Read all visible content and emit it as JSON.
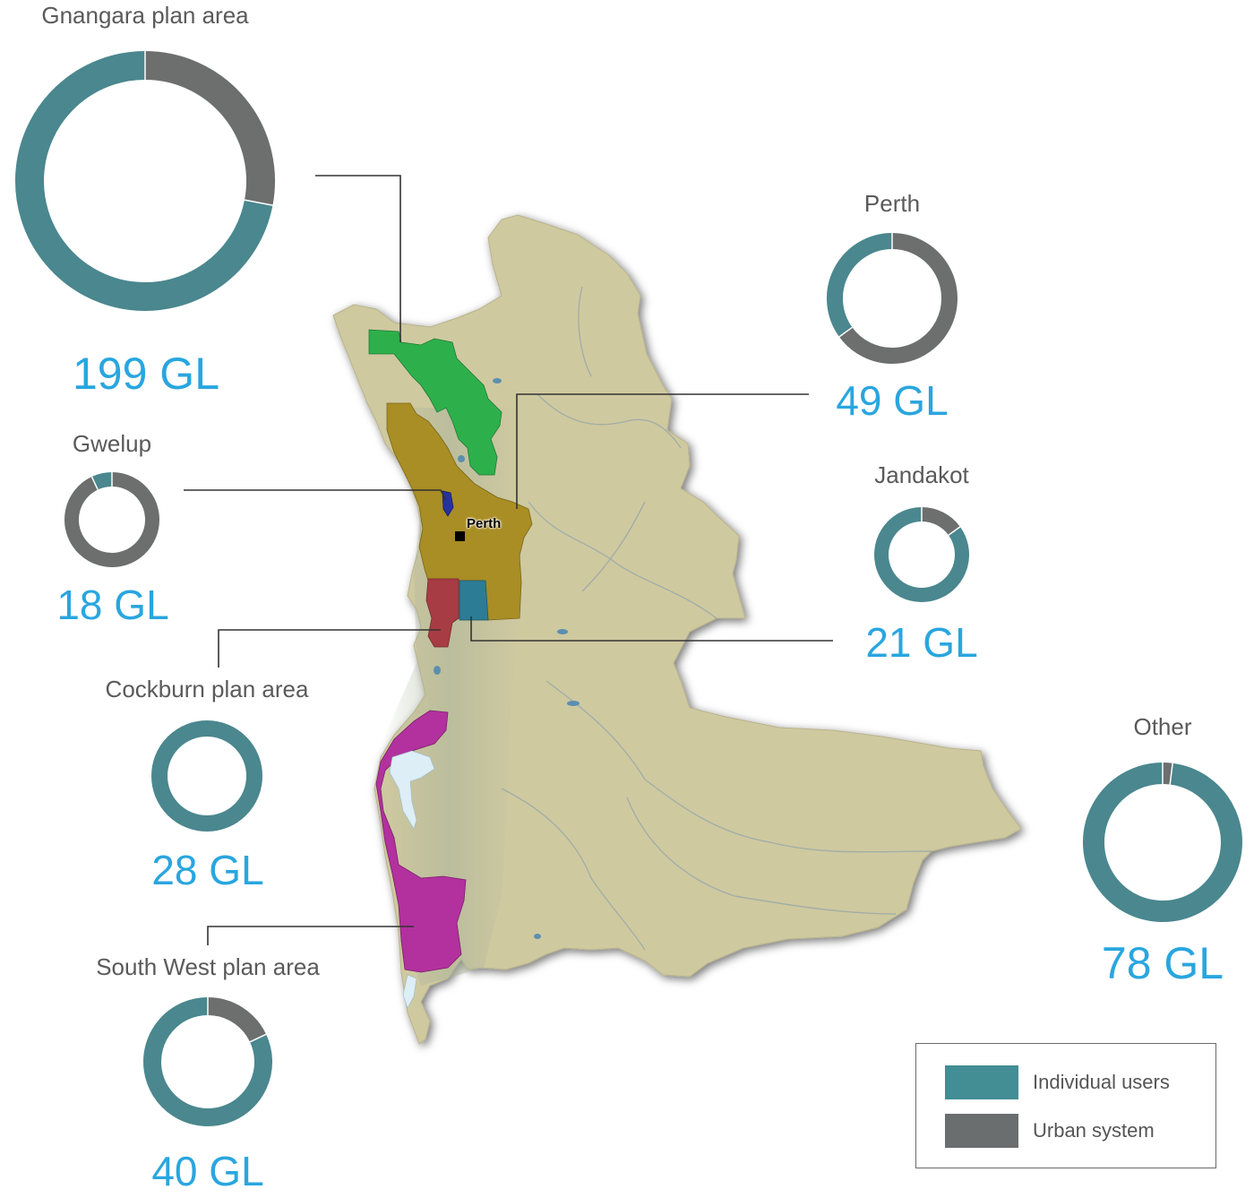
{
  "colors": {
    "individual": "#4a878e",
    "urban": "#6d6e6e",
    "value_text": "#29a6df",
    "label_text": "#5a5a5a",
    "leader_line": "#333333",
    "land": "#cfc9a0",
    "gnangara": "#2db04b",
    "perth_area": "#a98d25",
    "cockburn": "#a83c44",
    "jandakot": "#2c7c95",
    "gwelup": "#25339e",
    "south_west": "#b2319e",
    "lakes": "#ddeef7"
  },
  "map": {
    "city_marker_label": "Perth"
  },
  "regions": [
    {
      "id": "gnangara",
      "name": "Gnangara plan area",
      "value": "199 GL",
      "individual_pct": 72,
      "urban_pct": 28
    },
    {
      "id": "perth",
      "name": "Perth",
      "value": "49 GL",
      "individual_pct": 35,
      "urban_pct": 65
    },
    {
      "id": "gwelup",
      "name": "Gwelup",
      "value": "18 GL",
      "individual_pct": 7,
      "urban_pct": 93
    },
    {
      "id": "jandakot",
      "name": "Jandakot",
      "value": "21 GL",
      "individual_pct": 85,
      "urban_pct": 15
    },
    {
      "id": "cockburn",
      "name": "Cockburn plan area",
      "value": "28 GL",
      "individual_pct": 100,
      "urban_pct": 0
    },
    {
      "id": "other",
      "name": "Other",
      "value": "78 GL",
      "individual_pct": 98,
      "urban_pct": 2
    },
    {
      "id": "southwest",
      "name": "South West plan area",
      "value": "40 GL",
      "individual_pct": 82,
      "urban_pct": 18
    }
  ],
  "legend": [
    {
      "label": "Individual users",
      "color": "#438d95"
    },
    {
      "label": "Urban system",
      "color": "#6b6e6f"
    }
  ]
}
